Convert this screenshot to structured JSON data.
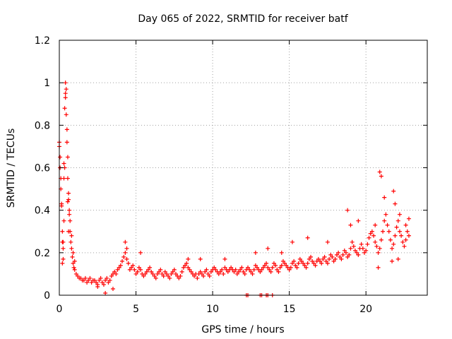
{
  "chart_data": {
    "type": "scatter",
    "title": "Day 065 of 2022, SRMTID for receiver batf",
    "xlabel": "GPS time / hours",
    "ylabel": "SRMTID / TECUs",
    "xlim": [
      0,
      24
    ],
    "ylim": [
      0,
      1.2
    ],
    "xticks": [
      0,
      5,
      10,
      15,
      20
    ],
    "yticks": [
      0,
      0.2,
      0.4,
      0.6,
      0.8,
      1,
      1.2
    ],
    "xtick_labels": [
      "0",
      "5",
      "10",
      "15",
      "20"
    ],
    "ytick_labels": [
      "0",
      "0.2",
      "0.4",
      "0.6",
      "0.8",
      "1",
      "1.2"
    ],
    "grid": true,
    "marker": "+",
    "color": "#ff0000",
    "series": [
      {
        "name": "SRMTID",
        "x": [
          0.0,
          0.05,
          0.1,
          0.15,
          0.2,
          0.25,
          0.3,
          0.35,
          0.4,
          0.45,
          0.5,
          0.55,
          0.6,
          0.65,
          0.7,
          0.75,
          0.8,
          0.85,
          0.9,
          0.95,
          1.0,
          1.1,
          1.2,
          1.3,
          1.4,
          1.5,
          1.6,
          1.7,
          1.8,
          1.9,
          2.0,
          2.1,
          2.2,
          2.3,
          2.4,
          2.5,
          2.6,
          2.7,
          2.8,
          2.9,
          3.0,
          3.1,
          3.2,
          3.3,
          3.4,
          3.5,
          3.6,
          3.7,
          3.8,
          3.9,
          4.0,
          4.1,
          4.2,
          4.3,
          4.4,
          4.5,
          4.6,
          4.7,
          4.8,
          4.9,
          5.0,
          5.1,
          5.2,
          5.3,
          5.4,
          5.5,
          5.6,
          5.7,
          5.8,
          5.9,
          6.0,
          6.1,
          6.2,
          6.3,
          6.4,
          6.5,
          6.6,
          6.7,
          6.8,
          6.9,
          7.0,
          7.1,
          7.2,
          7.3,
          7.4,
          7.5,
          7.6,
          7.7,
          7.8,
          7.9,
          8.0,
          8.1,
          8.2,
          8.3,
          8.4,
          8.5,
          8.6,
          8.7,
          8.8,
          8.9,
          9.0,
          9.1,
          9.2,
          9.3,
          9.4,
          9.5,
          9.6,
          9.7,
          9.8,
          9.9,
          10.0,
          10.1,
          10.2,
          10.3,
          10.4,
          10.5,
          10.6,
          10.7,
          10.8,
          10.9,
          11.0,
          11.1,
          11.2,
          11.3,
          11.4,
          11.5,
          11.6,
          11.7,
          11.8,
          11.9,
          12.0,
          12.1,
          12.2,
          12.3,
          12.4,
          12.5,
          12.6,
          12.7,
          12.8,
          12.9,
          13.0,
          13.1,
          13.2,
          13.3,
          13.4,
          13.5,
          13.6,
          13.7,
          13.8,
          13.9,
          14.0,
          14.1,
          14.2,
          14.3,
          14.4,
          14.5,
          14.6,
          14.7,
          14.8,
          14.9,
          15.0,
          15.1,
          15.2,
          15.3,
          15.4,
          15.5,
          15.6,
          15.7,
          15.8,
          15.9,
          16.0,
          16.1,
          16.2,
          16.3,
          16.4,
          16.5,
          16.6,
          16.7,
          16.8,
          16.9,
          17.0,
          17.1,
          17.2,
          17.3,
          17.4,
          17.5,
          17.6,
          17.7,
          17.8,
          17.9,
          18.0,
          18.1,
          18.2,
          18.3,
          18.4,
          18.5,
          18.6,
          18.7,
          18.8,
          18.9,
          19.0,
          19.1,
          19.2,
          19.3,
          19.4,
          19.5,
          19.6,
          19.7,
          19.8,
          19.9,
          20.0,
          20.1,
          20.2,
          20.3,
          20.4,
          20.5,
          20.6,
          20.7,
          20.8,
          20.9,
          21.0,
          21.1,
          21.2,
          21.3,
          21.4,
          21.5,
          21.6,
          21.7,
          21.8,
          21.9,
          22.0,
          22.1,
          22.2,
          22.3,
          22.4,
          22.5,
          22.6,
          22.7,
          22.8,
          0.0,
          0.05,
          0.1,
          0.15,
          0.2,
          0.25,
          0.3,
          0.35,
          0.4,
          0.45,
          0.5,
          0.55,
          0.6,
          0.65,
          0.7,
          0.8,
          0.9,
          1.0,
          2.5,
          3.0,
          3.5,
          4.3,
          4.4,
          5.3,
          8.4,
          9.2,
          10.8,
          12.8,
          13.6,
          14.5,
          15.2,
          16.2,
          17.5,
          18.8,
          19.0,
          19.5,
          20.6,
          20.9,
          21.0,
          21.2,
          21.8,
          21.9,
          22.2,
          22.6,
          22.8,
          12.2,
          12.3,
          13.1,
          13.2,
          13.5,
          13.6,
          13.9,
          0.2,
          0.25,
          0.3,
          0.4,
          0.55,
          0.6,
          20.8,
          21.7,
          22.1
        ],
        "y": [
          0.7,
          0.65,
          0.55,
          0.43,
          0.3,
          0.22,
          0.35,
          0.6,
          0.95,
          0.85,
          0.72,
          0.55,
          0.45,
          0.38,
          0.3,
          0.25,
          0.22,
          0.18,
          0.15,
          0.13,
          0.12,
          0.1,
          0.09,
          0.08,
          0.08,
          0.07,
          0.07,
          0.08,
          0.06,
          0.07,
          0.08,
          0.06,
          0.07,
          0.07,
          0.06,
          0.05,
          0.07,
          0.08,
          0.06,
          0.05,
          0.07,
          0.08,
          0.06,
          0.07,
          0.09,
          0.1,
          0.11,
          0.1,
          0.12,
          0.13,
          0.14,
          0.16,
          0.18,
          0.2,
          0.17,
          0.15,
          0.12,
          0.13,
          0.14,
          0.12,
          0.1,
          0.11,
          0.13,
          0.12,
          0.1,
          0.09,
          0.1,
          0.11,
          0.12,
          0.13,
          0.11,
          0.1,
          0.09,
          0.08,
          0.1,
          0.11,
          0.12,
          0.1,
          0.09,
          0.11,
          0.1,
          0.09,
          0.08,
          0.1,
          0.11,
          0.12,
          0.1,
          0.09,
          0.08,
          0.09,
          0.11,
          0.13,
          0.14,
          0.15,
          0.13,
          0.12,
          0.11,
          0.1,
          0.09,
          0.1,
          0.08,
          0.1,
          0.11,
          0.1,
          0.09,
          0.11,
          0.12,
          0.1,
          0.09,
          0.11,
          0.12,
          0.13,
          0.12,
          0.11,
          0.1,
          0.11,
          0.12,
          0.1,
          0.13,
          0.12,
          0.11,
          0.12,
          0.13,
          0.12,
          0.11,
          0.12,
          0.1,
          0.11,
          0.12,
          0.13,
          0.11,
          0.1,
          0.12,
          0.13,
          0.12,
          0.11,
          0.1,
          0.12,
          0.14,
          0.13,
          0.12,
          0.11,
          0.12,
          0.13,
          0.14,
          0.15,
          0.13,
          0.12,
          0.11,
          0.13,
          0.15,
          0.14,
          0.12,
          0.11,
          0.13,
          0.14,
          0.16,
          0.15,
          0.14,
          0.13,
          0.12,
          0.13,
          0.15,
          0.16,
          0.14,
          0.13,
          0.15,
          0.17,
          0.16,
          0.15,
          0.14,
          0.13,
          0.15,
          0.17,
          0.18,
          0.16,
          0.15,
          0.14,
          0.16,
          0.17,
          0.16,
          0.15,
          0.17,
          0.18,
          0.16,
          0.15,
          0.17,
          0.19,
          0.18,
          0.16,
          0.17,
          0.19,
          0.2,
          0.18,
          0.17,
          0.19,
          0.21,
          0.2,
          0.18,
          0.19,
          0.22,
          0.25,
          0.23,
          0.21,
          0.2,
          0.19,
          0.22,
          0.24,
          0.22,
          0.2,
          0.21,
          0.24,
          0.27,
          0.29,
          0.3,
          0.28,
          0.25,
          0.23,
          0.2,
          0.22,
          0.26,
          0.3,
          0.35,
          0.38,
          0.33,
          0.3,
          0.26,
          0.22,
          0.24,
          0.28,
          0.32,
          0.35,
          0.3,
          0.28,
          0.25,
          0.23,
          0.26,
          0.3,
          0.28,
          0.72,
          0.6,
          0.5,
          0.42,
          0.25,
          0.17,
          0.62,
          0.88,
          1.0,
          0.97,
          0.78,
          0.65,
          0.48,
          0.4,
          0.35,
          0.28,
          0.2,
          0.16,
          0.04,
          0.01,
          0.03,
          0.25,
          0.22,
          0.2,
          0.17,
          0.17,
          0.17,
          0.2,
          0.22,
          0.2,
          0.25,
          0.27,
          0.25,
          0.4,
          0.33,
          0.35,
          0.33,
          0.58,
          0.56,
          0.46,
          0.49,
          0.43,
          0.38,
          0.33,
          0.36,
          0.0,
          0.0,
          0.0,
          0.0,
          0.0,
          0.0,
          0.0,
          0.15,
          0.25,
          0.55,
          0.93,
          0.44,
          0.3,
          0.13,
          0.16,
          0.17
        ]
      }
    ]
  }
}
